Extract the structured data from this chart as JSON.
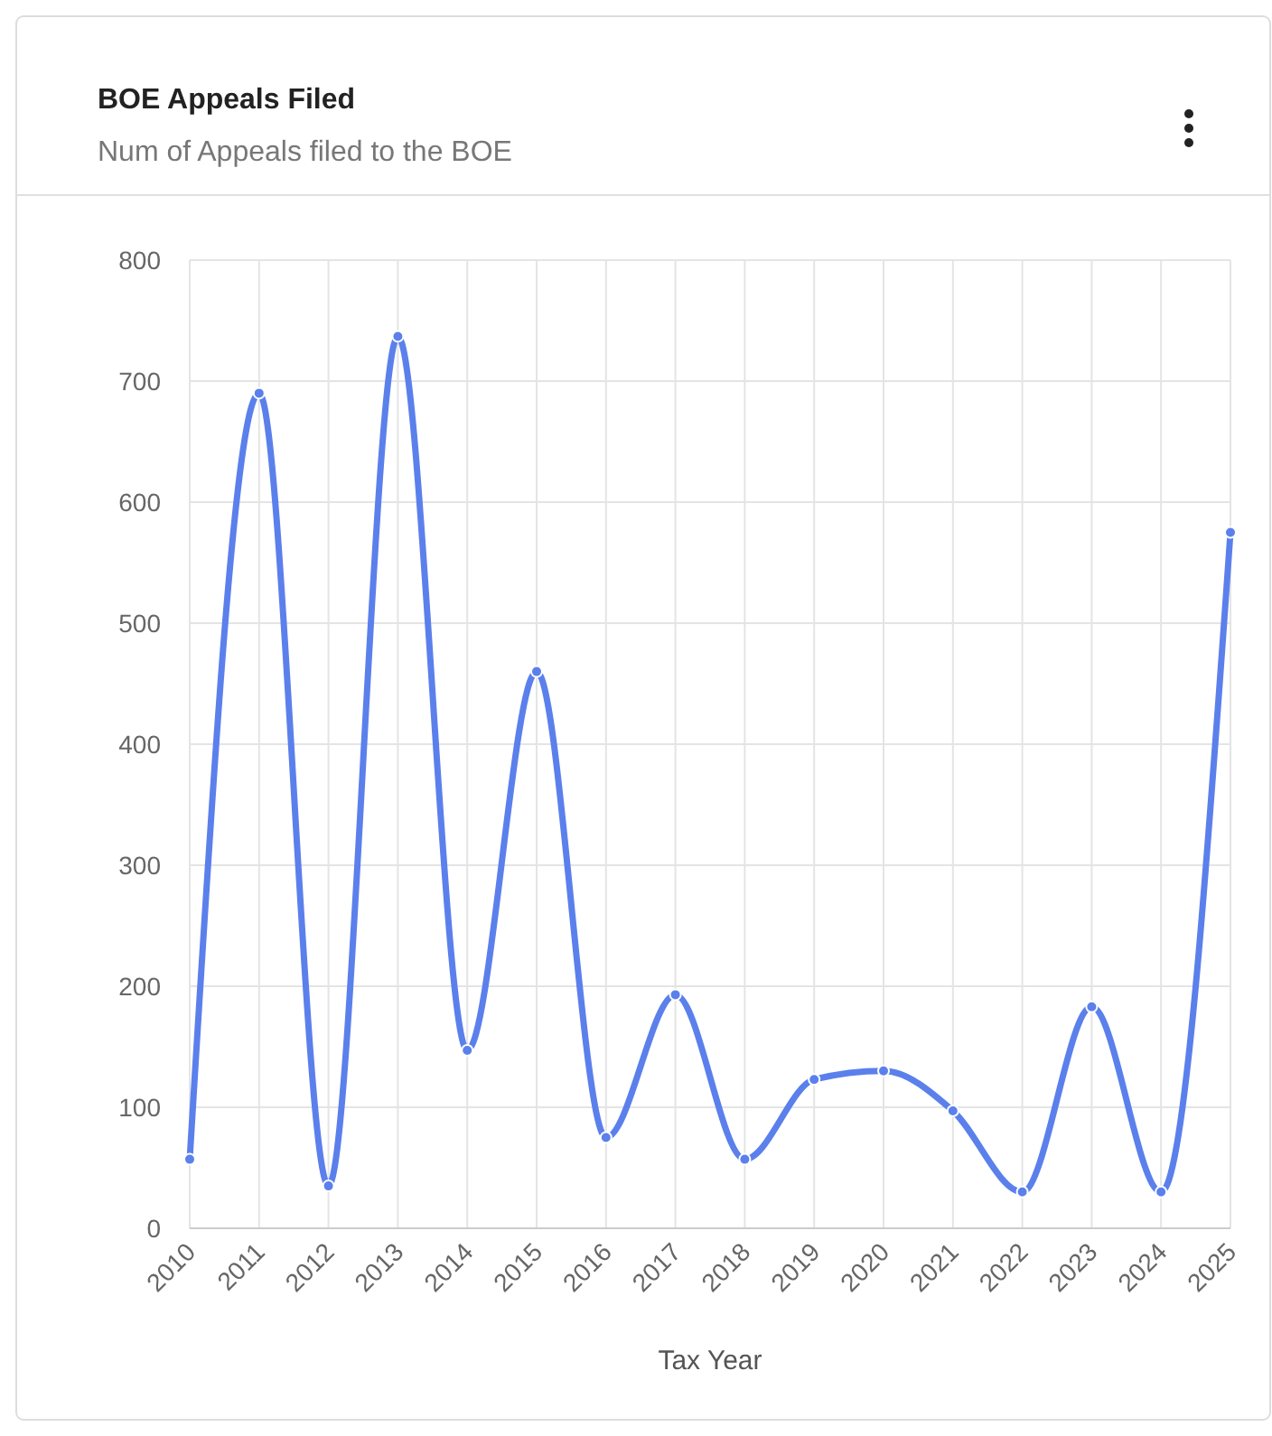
{
  "chart_data": {
    "type": "line",
    "title": "BOE Appeals Filed",
    "subtitle": "Num of Appeals filed to the BOE",
    "xlabel": "Tax Year",
    "categories": [
      "2010",
      "2011",
      "2012",
      "2013",
      "2014",
      "2015",
      "2016",
      "2017",
      "2018",
      "2019",
      "2020",
      "2021",
      "2022",
      "2023",
      "2024",
      "2025"
    ],
    "series": [
      {
        "color": "#5b80ec",
        "values": [
          57,
          690,
          35,
          737,
          147,
          460,
          75,
          193,
          57,
          123,
          130,
          97,
          30,
          183,
          30,
          575
        ]
      }
    ],
    "ylim": [
      0,
      800
    ],
    "yticks": [
      0,
      100,
      200,
      300,
      400,
      500,
      600,
      700,
      800
    ],
    "grid": true,
    "marker": "circle"
  }
}
